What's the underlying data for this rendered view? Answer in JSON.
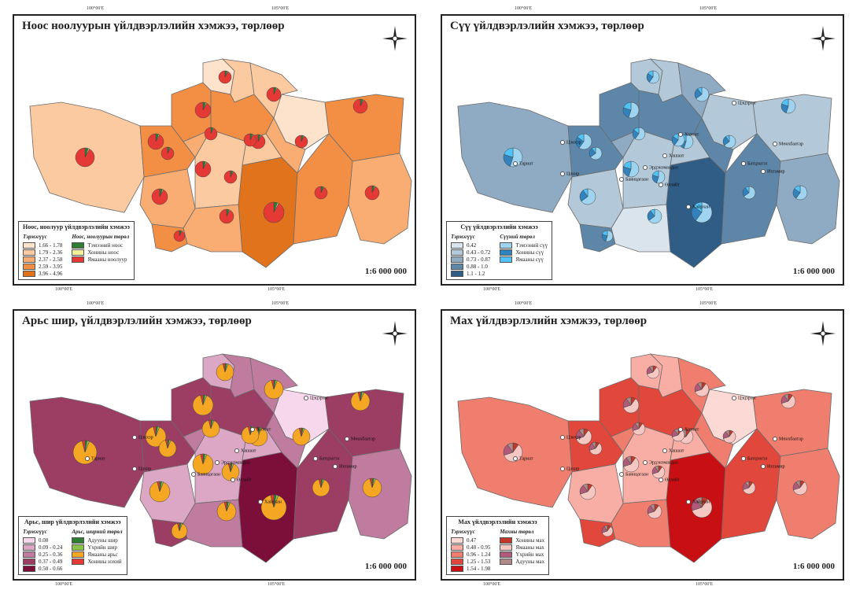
{
  "panels": [
    {
      "title": "Ноос ноолуурын үйлдвэрлэлийн хэмжээ, төрлөөр",
      "scale": "1:6 000 000",
      "coords_top": [
        "100°00'E",
        "105°00'E"
      ],
      "coords_bottom": [
        "100°00'E",
        "105°00'E"
      ],
      "legend": {
        "title": "Ноос, ноолуур үйлдвэрлэлийн хэмжээ",
        "class_header": "Тэрмэгүүс",
        "type_header": "Ноос, ноолуурын төрөл",
        "classes": [
          {
            "label": "1.66 - 1.78",
            "color": "#fde3cc"
          },
          {
            "label": "1.79 - 2.36",
            "color": "#fccaa0"
          },
          {
            "label": "2.37 - 2.58",
            "color": "#f9ad72"
          },
          {
            "label": "2.59 - 3.95",
            "color": "#f28f45"
          },
          {
            "label": "3.96 - 4.96",
            "color": "#e0731c"
          }
        ],
        "types": [
          {
            "label": "Тэмээний ноос",
            "color": "#2e7d32"
          },
          {
            "label": "Хонины ноос",
            "color": "#f4ef9a"
          },
          {
            "label": "Ямааны ноолуур",
            "color": "#e53935"
          }
        ]
      },
      "regions": [
        "#fccaa0",
        "#f28f45",
        "#f9ad72",
        "#f28f45",
        "#fde3cc",
        "#fccaa0",
        "#f28f45",
        "#e0731c",
        "#fde3cc",
        "#fccaa0",
        "#fccaa0",
        "#f9ad72",
        "#f28f45",
        "#f9ad72",
        "#f28f45",
        "#f9ad72",
        "#fccaa0",
        "#f9ad72",
        "#f28f45"
      ],
      "labels": []
    },
    {
      "title": "Сүү үйлдвэрлэлийн хэмжээ, төрлөөр",
      "scale": "1:6 000 000",
      "coords_top": [
        "100°00'E",
        "105°00'E"
      ],
      "coords_bottom": [
        "100°00'E",
        "105°00'E"
      ],
      "legend": {
        "title": "Сүү үйлдвэрлэлийн хэмжээ",
        "class_header": "Тэрмэгүүс",
        "type_header": "Сүүний төрөл",
        "classes": [
          {
            "label": "0.42",
            "color": "#d9e4ec"
          },
          {
            "label": "0.43 - 0.72",
            "color": "#b3c8d8"
          },
          {
            "label": "0.73 - 0.87",
            "color": "#8eabc3"
          },
          {
            "label": "0.88 - 1.0",
            "color": "#5e86a8"
          },
          {
            "label": "1.1 - 1.2",
            "color": "#2f5d86"
          }
        ],
        "types": [
          {
            "label": "Тэмээний сүү",
            "color": "#9ed4f0"
          },
          {
            "label": "Хонины сүү",
            "color": "#3182bd"
          },
          {
            "label": "Ямааны сүү",
            "color": "#4fc3f7"
          }
        ]
      },
      "regions": [
        "#8eabc3",
        "#5e86a8",
        "#b3c8d8",
        "#5e86a8",
        "#b3c8d8",
        "#b3c8d8",
        "#5e86a8",
        "#2f5d86",
        "#b3c8d8",
        "#8eabc3",
        "#b3c8d8",
        "#d9e4ec",
        "#b3c8d8",
        "#8eabc3",
        "#5e86a8",
        "#5e86a8",
        "#b3c8d8",
        "#8eabc3",
        "#5e86a8"
      ],
      "labels": [
        "Цэцэрлэг",
        "Хотонт",
        "Хашаат",
        "Эрдэнэмандал",
        "Өлзийт",
        "Цэнхэр",
        "Баянцагаан",
        "Хайрхан",
        "Ихтамир",
        "Цахир",
        "Батцэнгэл",
        "Мөнхбаатар",
        "Тариат"
      ]
    },
    {
      "title": "Арьс шир, үйлдвэрлэлийн хэмжээ, төрлөөр",
      "scale": "1:6 000 000",
      "coords_top": [
        "100°00'E",
        "105°00'E"
      ],
      "coords_bottom": [
        "100°00'E",
        "105°00'E"
      ],
      "legend": {
        "title": "Арьс, шир үйлдвэрлэлийн хэмжээ",
        "class_header": "Тэрмэгүүс",
        "type_header": "Арьс, ширний төрөл",
        "classes": [
          {
            "label": "0.08",
            "color": "#f7d7ec"
          },
          {
            "label": "0.09 - 0.24",
            "color": "#dba7c4"
          },
          {
            "label": "0.25 - 0.36",
            "color": "#c07c9e"
          },
          {
            "label": "0.37 - 0.49",
            "color": "#9c3d64"
          },
          {
            "label": "0.50 - 0.66",
            "color": "#7b0f3a"
          }
        ],
        "types": [
          {
            "label": "Адууны шир",
            "color": "#2e7d32"
          },
          {
            "label": "Үхрийн шир",
            "color": "#8bc34a"
          },
          {
            "label": "Ямааны арьс",
            "color": "#f5a623"
          },
          {
            "label": "Хонины нэхий",
            "color": "#e53935"
          }
        ]
      },
      "regions": [
        "#9c3d64",
        "#9c3d64",
        "#dba7c4",
        "#9c3d64",
        "#dba7c4",
        "#c07c9e",
        "#9c3d64",
        "#7b0f3a",
        "#f7d7ec",
        "#c07c9e",
        "#dba7c4",
        "#c07c9e",
        "#9c3d64",
        "#c07c9e",
        "#9c3d64",
        "#c07c9e",
        "#dba7c4",
        "#c07c9e",
        "#9c3d64"
      ],
      "labels": [
        "Цэцэрлэг",
        "Хотонт",
        "Хашаат",
        "Эрдэнэмандал",
        "Өлзийт",
        "Цэнхэр",
        "Баянцагаан",
        "Хайрхан",
        "Ихтамир",
        "Цахир",
        "Батцэнгэл",
        "Мөнхбаатар",
        "Тариат"
      ]
    },
    {
      "title": "Мах үйлдвэрлэлийн хэмжээ, төрлөөр",
      "scale": "1:6 000 000",
      "coords_top": [
        "100°00'E",
        "105°00'E"
      ],
      "coords_bottom": [
        "100°00'E",
        "105°00'E"
      ],
      "legend": {
        "title": "Мах үйлдвэрлэлийн хэмжээ",
        "class_header": "Тэрмэгүүс",
        "type_header": "Махны төрөл",
        "classes": [
          {
            "label": "0.47",
            "color": "#fcd9d5"
          },
          {
            "label": "0.48 - 0.95",
            "color": "#f8aea4"
          },
          {
            "label": "0.96 - 1.24",
            "color": "#f07e6f"
          },
          {
            "label": "1.25 - 1.53",
            "color": "#e1473b"
          },
          {
            "label": "1.54 - 1.98",
            "color": "#c81014"
          }
        ],
        "types": [
          {
            "label": "Хонины мах",
            "color": "#c0392b"
          },
          {
            "label": "Ямааны мах",
            "color": "#f4c7c3"
          },
          {
            "label": "Үхрийн мах",
            "color": "#b05a7a"
          },
          {
            "label": "Адууны мах",
            "color": "#b08a8a"
          }
        ]
      },
      "regions": [
        "#f07e6f",
        "#e1473b",
        "#f8aea4",
        "#e1473b",
        "#f8aea4",
        "#f8aea4",
        "#e1473b",
        "#c81014",
        "#fcd9d5",
        "#f07e6f",
        "#f8aea4",
        "#f07e6f",
        "#f07e6f",
        "#f07e6f",
        "#e1473b",
        "#f07e6f",
        "#f8aea4",
        "#f07e6f",
        "#e1473b"
      ],
      "labels": [
        "Цэцэрлэг",
        "Хотонт",
        "Хашаат",
        "Эрдэнэмандал",
        "Өлзийт",
        "Цэнхэр",
        "Баянцагаан",
        "Хайрхан",
        "Ихтамир",
        "Цахир",
        "Батцэнгэл",
        "Мөнхбаатар",
        "Тариат"
      ]
    }
  ]
}
